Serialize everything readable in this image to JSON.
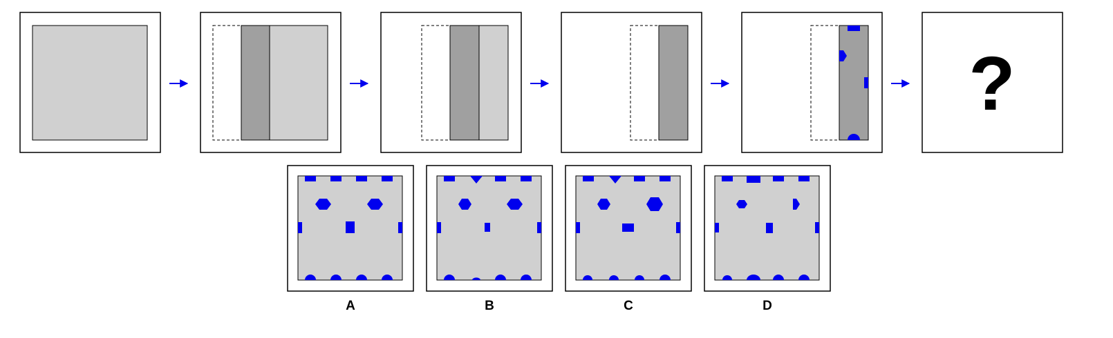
{
  "sequence": {
    "unknown_symbol": "?"
  },
  "options": {
    "labels": [
      "A",
      "B",
      "C",
      "D"
    ]
  },
  "colors": {
    "paper": "#d0d0d0",
    "fold": "#a0a0a0",
    "hole": "#0000ee",
    "arrow": "#0000ee"
  }
}
